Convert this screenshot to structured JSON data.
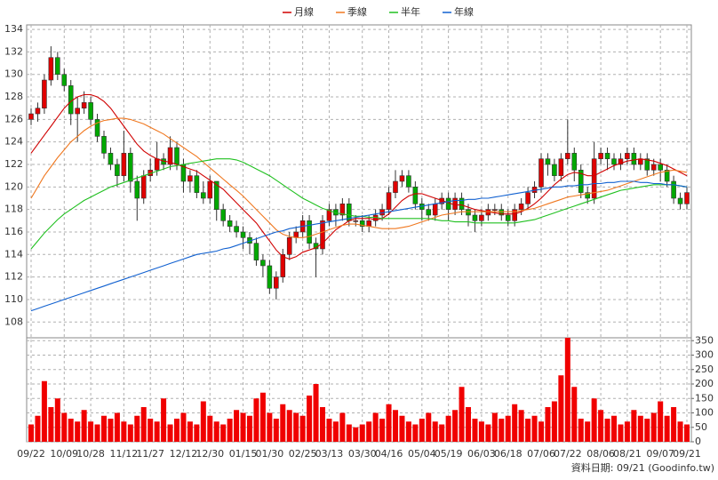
{
  "chart_data": {
    "type": "candlestick",
    "x": [
      "09/22",
      null,
      null,
      null,
      null,
      "10/09",
      null,
      null,
      null,
      "10/28",
      null,
      null,
      null,
      null,
      "11/12",
      null,
      null,
      null,
      "11/27",
      null,
      null,
      null,
      null,
      "12/12",
      null,
      null,
      null,
      "12/30",
      null,
      null,
      null,
      null,
      "01/15",
      null,
      null,
      null,
      "01/30",
      null,
      null,
      null,
      null,
      "02/25",
      null,
      null,
      null,
      "03/13",
      null,
      null,
      null,
      null,
      "03/30",
      null,
      null,
      null,
      "04/16",
      null,
      null,
      null,
      null,
      "05/04",
      null,
      null,
      null,
      "05/19",
      null,
      null,
      null,
      null,
      "06/03",
      null,
      null,
      null,
      "06/18",
      null,
      null,
      null,
      null,
      "07/06",
      null,
      null,
      null,
      "07/22",
      null,
      null,
      null,
      null,
      "08/06",
      null,
      null,
      null,
      "08/21",
      null,
      null,
      null,
      null,
      "09/07",
      null,
      null,
      null,
      "09/21"
    ],
    "open": [
      126,
      126.5,
      127,
      129.5,
      131.5,
      130,
      129,
      126.5,
      127,
      127.5,
      126,
      124.5,
      123,
      122,
      121,
      123,
      120.5,
      119,
      121,
      121.5,
      122.5,
      122,
      123.5,
      122,
      120.5,
      121,
      119.5,
      119,
      120.5,
      118,
      117,
      116.5,
      116,
      115.5,
      115,
      113.5,
      113,
      111,
      112,
      114,
      115.5,
      116,
      117,
      115,
      114.5,
      117,
      118,
      117.5,
      118.5,
      117,
      117,
      116.5,
      117,
      117.5,
      118,
      119.5,
      120.5,
      121,
      120,
      118.5,
      118,
      117.5,
      118.5,
      119,
      118,
      119,
      118,
      117.5,
      117,
      117.5,
      118,
      118,
      117.5,
      117,
      118,
      118.5,
      119.5,
      120,
      122.5,
      122,
      121,
      122.5,
      123,
      121.5,
      119.5,
      119,
      122.5,
      123,
      122.5,
      122,
      122.5,
      123,
      122,
      122.5,
      121.5,
      122,
      121.5,
      120.5,
      119,
      118.5
    ],
    "high": [
      127,
      127.5,
      130,
      132.5,
      132,
      130.5,
      129.5,
      128,
      128.5,
      128,
      126.5,
      125,
      123.5,
      122.5,
      125,
      123.5,
      121,
      121.5,
      122.5,
      124,
      123,
      124.5,
      124,
      122.5,
      121.5,
      121.5,
      120.5,
      121,
      120.5,
      118.5,
      117.5,
      117,
      116.5,
      116,
      115.5,
      114,
      113.5,
      112.5,
      114.5,
      116,
      116.5,
      117.5,
      117.5,
      115.5,
      117.5,
      118.5,
      118.5,
      119,
      119,
      117.5,
      117.5,
      117.5,
      118,
      118.5,
      120,
      121.5,
      121.5,
      121.5,
      120.5,
      119,
      118.5,
      119,
      119.5,
      119.5,
      119.5,
      119.5,
      118.5,
      118,
      118,
      118.5,
      118.5,
      118.5,
      118,
      118.5,
      119,
      120,
      120.5,
      123,
      123,
      122.5,
      123,
      126,
      123.5,
      122,
      120,
      124,
      123.5,
      123.5,
      123,
      123,
      123.5,
      123.5,
      123,
      123,
      122.5,
      122.5,
      122,
      121,
      119.5,
      120
    ],
    "low": [
      125.5,
      125.8,
      126.5,
      129,
      129.5,
      128.5,
      125.5,
      124,
      126.5,
      125.5,
      124,
      122.5,
      121.5,
      120,
      120.5,
      119.5,
      117,
      118.5,
      120.5,
      121,
      121.5,
      121.5,
      121.5,
      119.5,
      119.5,
      119,
      118.5,
      118.5,
      117,
      116.5,
      116,
      115.5,
      114.5,
      114,
      113,
      112,
      110.5,
      110,
      111.5,
      113.5,
      115,
      115.5,
      114.5,
      112,
      114,
      116.5,
      116.5,
      117,
      116.5,
      116.5,
      116,
      116,
      116.5,
      117,
      117.5,
      119,
      120,
      119.5,
      118,
      117,
      117,
      117,
      118,
      117,
      117.5,
      117.5,
      116.5,
      116,
      116.5,
      117,
      117.5,
      117,
      116.5,
      116.5,
      117.5,
      118,
      119,
      119.5,
      121,
      120.5,
      120.5,
      122,
      120.5,
      119,
      118.5,
      118.5,
      122,
      121.5,
      121.5,
      121.5,
      122,
      121.5,
      121.5,
      121,
      121,
      120.5,
      120,
      118.5,
      118,
      118
    ],
    "close": [
      126.5,
      127,
      129.5,
      131.5,
      130,
      129,
      126.5,
      127,
      127.5,
      126,
      124.5,
      123,
      122,
      121,
      123,
      120.5,
      119,
      121,
      121.5,
      122.5,
      122,
      123.5,
      122,
      120.5,
      121,
      119.5,
      119,
      120.5,
      118,
      117,
      116.5,
      116,
      115.5,
      115,
      113.5,
      113,
      111,
      112,
      114,
      115.5,
      116,
      117,
      115,
      114.5,
      117,
      118,
      117.5,
      118.5,
      117,
      117,
      116.5,
      117,
      117.5,
      118,
      119.5,
      120.5,
      121,
      120,
      118.5,
      118,
      117.5,
      118.5,
      119,
      118,
      119,
      118,
      117.5,
      117,
      117.5,
      118,
      118,
      117.5,
      117,
      118,
      118.5,
      119.5,
      120,
      122.5,
      122,
      121,
      122.5,
      123,
      121.5,
      119.5,
      119,
      122.5,
      123,
      122.5,
      122,
      122.5,
      123,
      122,
      122.5,
      121.5,
      122,
      121.5,
      120.5,
      119,
      118.5,
      119.5
    ],
    "volume": [
      60,
      90,
      210,
      120,
      150,
      100,
      80,
      70,
      110,
      70,
      60,
      90,
      80,
      100,
      70,
      60,
      90,
      120,
      80,
      70,
      150,
      60,
      80,
      100,
      70,
      60,
      140,
      90,
      70,
      60,
      80,
      110,
      100,
      90,
      150,
      170,
      100,
      80,
      130,
      110,
      100,
      90,
      160,
      200,
      120,
      80,
      70,
      100,
      60,
      50,
      60,
      70,
      100,
      80,
      130,
      110,
      90,
      70,
      60,
      80,
      100,
      70,
      60,
      90,
      110,
      190,
      120,
      80,
      70,
      60,
      100,
      80,
      90,
      130,
      110,
      80,
      90,
      70,
      120,
      140,
      230,
      360,
      190,
      80,
      70,
      150,
      110,
      80,
      90,
      60,
      70,
      110,
      90,
      80,
      100,
      140,
      90,
      120,
      70,
      60
    ],
    "ylim": [
      106.6,
      134.4
    ],
    "yticks": [
      108,
      110,
      112,
      114,
      116,
      118,
      120,
      122,
      124,
      126,
      128,
      130,
      132,
      134
    ],
    "volume_ylim": [
      0,
      360
    ],
    "volume_yticks": [
      0,
      50,
      100,
      150,
      200,
      250,
      300,
      350
    ],
    "up_color": "#e00000",
    "down_color": "#00a800",
    "volume_color": "#f00000",
    "grid": true,
    "moving_averages": [
      {
        "name": "月線",
        "color": "#d00000",
        "values": [
          123,
          123.8,
          124.6,
          125.4,
          126.2,
          127,
          127.6,
          128,
          128.2,
          128.2,
          128,
          127.6,
          127,
          126.2,
          125.4,
          124.6,
          123.8,
          123.2,
          122.8,
          122.5,
          122.3,
          122.2,
          122,
          121.8,
          121.6,
          121.4,
          121,
          120.6,
          120.2,
          119.8,
          119.2,
          118.6,
          118,
          117.4,
          116.8,
          116,
          115.2,
          114.4,
          113.8,
          113.6,
          113.8,
          114.2,
          114.4,
          114.6,
          115,
          115.6,
          116.2,
          116.6,
          117,
          117.2,
          117.2,
          117.2,
          117.1,
          117.2,
          117.6,
          118.2,
          118.8,
          119.2,
          119.4,
          119.4,
          119.2,
          119,
          118.8,
          118.6,
          118.4,
          118.4,
          118.2,
          118,
          117.9,
          117.8,
          117.7,
          117.6,
          117.6,
          117.6,
          117.8,
          118.1,
          118.5,
          119,
          119.6,
          120.2,
          120.7,
          121.1,
          121.3,
          121.2,
          121,
          121,
          121.3,
          121.6,
          121.9,
          122.1,
          122.3,
          122.4,
          122.5,
          122.4,
          122.3,
          122.1,
          121.9,
          121.6,
          121.3,
          121
        ]
      },
      {
        "name": "季線",
        "color": "#f07820",
        "values": [
          119,
          120,
          121,
          121.8,
          122.6,
          123.3,
          124,
          124.5,
          125,
          125.4,
          125.7,
          125.9,
          126,
          126.1,
          126.1,
          126,
          125.8,
          125.6,
          125.3,
          125,
          124.7,
          124.3,
          123.9,
          123.5,
          123.1,
          122.7,
          122.2,
          121.7,
          121.2,
          120.7,
          120.2,
          119.7,
          119.2,
          118.6,
          118,
          117.4,
          116.8,
          116.2,
          115.8,
          115.6,
          115.5,
          115.5,
          115.6,
          115.8,
          116,
          116.2,
          116.4,
          116.6,
          116.7,
          116.7,
          116.6,
          116.5,
          116.4,
          116.3,
          116.3,
          116.3,
          116.4,
          116.5,
          116.7,
          116.9,
          117.1,
          117.3,
          117.5,
          117.6,
          117.7,
          117.8,
          117.8,
          117.8,
          117.8,
          117.8,
          117.8,
          117.8,
          117.8,
          117.8,
          117.9,
          118,
          118.1,
          118.3,
          118.5,
          118.7,
          118.9,
          119.1,
          119.2,
          119.3,
          119.4,
          119.5,
          119.6,
          119.7,
          119.9,
          120.1,
          120.3,
          120.5,
          120.7,
          120.9,
          121.1,
          121.3,
          121.4,
          121.5,
          121.4,
          121.3
        ]
      },
      {
        "name": "半年",
        "color": "#20c020",
        "values": [
          114.5,
          115.2,
          115.9,
          116.5,
          117.1,
          117.6,
          118,
          118.4,
          118.8,
          119.1,
          119.4,
          119.7,
          120,
          120.2,
          120.4,
          120.6,
          120.8,
          121,
          121.2,
          121.4,
          121.6,
          121.8,
          121.9,
          122,
          122.1,
          122.2,
          122.3,
          122.4,
          122.5,
          122.5,
          122.5,
          122.4,
          122.2,
          121.9,
          121.6,
          121.3,
          121,
          120.6,
          120.2,
          119.8,
          119.4,
          119,
          118.7,
          118.4,
          118.1,
          117.9,
          117.7,
          117.6,
          117.5,
          117.4,
          117.4,
          117.3,
          117.3,
          117.2,
          117.2,
          117.2,
          117.2,
          117.2,
          117.2,
          117.2,
          117.2,
          117.1,
          117,
          117,
          116.9,
          116.9,
          116.9,
          116.8,
          116.8,
          116.8,
          116.8,
          116.8,
          116.8,
          116.8,
          116.9,
          117,
          117.1,
          117.3,
          117.5,
          117.7,
          117.9,
          118.1,
          118.3,
          118.5,
          118.7,
          118.9,
          119.1,
          119.3,
          119.5,
          119.7,
          119.8,
          119.9,
          120,
          120.1,
          120.2,
          120.2,
          120.2,
          120.2,
          120.1,
          120
        ]
      },
      {
        "name": "年線",
        "color": "#1060d0",
        "values": [
          109,
          109.2,
          109.4,
          109.6,
          109.8,
          110,
          110.2,
          110.4,
          110.6,
          110.8,
          111,
          111.2,
          111.4,
          111.6,
          111.8,
          112,
          112.2,
          112.4,
          112.6,
          112.8,
          113,
          113.2,
          113.4,
          113.6,
          113.8,
          114,
          114.1,
          114.2,
          114.3,
          114.5,
          114.6,
          114.8,
          115,
          115.2,
          115.4,
          115.6,
          115.8,
          116,
          116.1,
          116.3,
          116.4,
          116.5,
          116.6,
          116.7,
          116.8,
          116.9,
          117,
          117.1,
          117.2,
          117.3,
          117.4,
          117.5,
          117.6,
          117.7,
          117.8,
          117.9,
          118,
          118.1,
          118.2,
          118.3,
          118.4,
          118.5,
          118.6,
          118.7,
          118.8,
          118.8,
          118.9,
          118.9,
          119,
          119,
          119.1,
          119.2,
          119.3,
          119.4,
          119.5,
          119.6,
          119.7,
          119.8,
          119.9,
          120,
          120,
          120.1,
          120.1,
          120.2,
          120.2,
          120.3,
          120.3,
          120.4,
          120.4,
          120.5,
          120.5,
          120.5,
          120.4,
          120.4,
          120.3,
          120.3,
          120.2,
          120.2,
          120.1,
          120
        ]
      }
    ],
    "footer": "資料日期: 09/21 (Goodinfo.tw)"
  }
}
